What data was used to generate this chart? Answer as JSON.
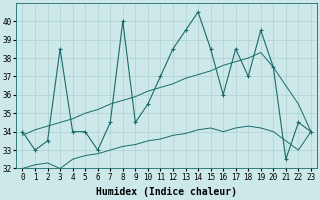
{
  "xlabel": "Humidex (Indice chaleur)",
  "ylabel": "",
  "bg_color": "#cce8e8",
  "grid_color": "#b0d0d0",
  "line_color": "#1a6b6b",
  "x_data": [
    0,
    1,
    2,
    3,
    4,
    5,
    6,
    7,
    8,
    9,
    10,
    11,
    12,
    13,
    14,
    15,
    16,
    17,
    18,
    19,
    20,
    21,
    22,
    23
  ],
  "y_main": [
    34,
    33,
    33.5,
    38.5,
    34,
    34,
    33,
    34.5,
    40,
    34.5,
    35.5,
    37,
    38.5,
    39.5,
    40.5,
    38.5,
    36,
    38.5,
    37,
    39.5,
    37.5,
    32.5,
    34.5,
    34
  ],
  "y_upper": [
    33.8,
    34.1,
    34.3,
    34.5,
    34.7,
    35.0,
    35.2,
    35.5,
    35.7,
    35.9,
    36.2,
    36.4,
    36.6,
    36.9,
    37.1,
    37.3,
    37.6,
    37.8,
    38.0,
    38.3,
    37.5,
    36.5,
    35.5,
    34.0
  ],
  "y_lower": [
    32.0,
    32.2,
    32.3,
    32.0,
    32.5,
    32.7,
    32.8,
    33.0,
    33.2,
    33.3,
    33.5,
    33.6,
    33.8,
    33.9,
    34.1,
    34.2,
    34.0,
    34.2,
    34.3,
    34.2,
    34.0,
    33.5,
    33.0,
    34.0
  ],
  "ylim": [
    32,
    41
  ],
  "xlim": [
    -0.5,
    23.5
  ],
  "yticks": [
    32,
    33,
    34,
    35,
    36,
    37,
    38,
    39,
    40
  ],
  "xticks": [
    0,
    1,
    2,
    3,
    4,
    5,
    6,
    7,
    8,
    9,
    10,
    11,
    12,
    13,
    14,
    15,
    16,
    17,
    18,
    19,
    20,
    21,
    22,
    23
  ],
  "tick_fontsize": 5.5,
  "label_fontsize": 7,
  "marker": "+"
}
